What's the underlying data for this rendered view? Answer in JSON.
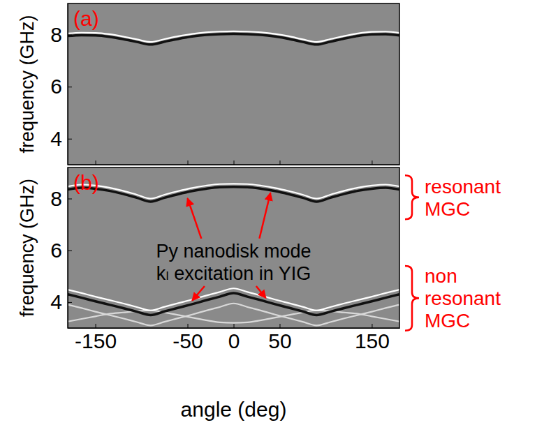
{
  "chart_data": [
    {
      "type": "line",
      "label": "(a)",
      "y_label": "frequency (GHz)",
      "tick_labels": "y",
      "xlim": [
        -180,
        180
      ],
      "xticks": [
        -150,
        -50,
        0,
        50,
        150
      ],
      "ylim": [
        3,
        9.2
      ],
      "yticks": [
        4,
        6,
        8
      ],
      "x": [
        -180,
        -165,
        -150,
        -135,
        -120,
        -105,
        -90,
        -75,
        -60,
        -45,
        -30,
        -15,
        0,
        15,
        30,
        45,
        60,
        75,
        90,
        105,
        120,
        135,
        150,
        165,
        180
      ],
      "series": [
        {
          "color": "#ffffff",
          "values": [
            8.05,
            8.08,
            8.07,
            8.02,
            7.93,
            7.82,
            7.72,
            7.83,
            7.94,
            8.03,
            8.09,
            8.12,
            8.13,
            8.12,
            8.09,
            8.03,
            7.94,
            7.82,
            7.72,
            7.83,
            7.95,
            8.05,
            8.11,
            8.12,
            8.07
          ]
        },
        {
          "color": "#111111",
          "values": [
            7.95,
            7.98,
            7.97,
            7.92,
            7.83,
            7.72,
            7.62,
            7.73,
            7.84,
            7.93,
            7.99,
            8.02,
            8.03,
            8.02,
            7.99,
            7.93,
            7.84,
            7.72,
            7.62,
            7.73,
            7.85,
            7.95,
            8.01,
            8.02,
            7.97
          ]
        }
      ]
    },
    {
      "type": "line",
      "label": "(b)",
      "x_label": "angle (deg)",
      "y_label": "frequency (GHz)",
      "xlim": [
        -180,
        180
      ],
      "xticks": [
        -150,
        -50,
        0,
        50,
        150
      ],
      "ylim": [
        3,
        9.2
      ],
      "yticks": [
        4,
        6,
        8
      ],
      "x": [
        -180,
        -165,
        -150,
        -135,
        -120,
        -105,
        -90,
        -75,
        -60,
        -45,
        -30,
        -15,
        0,
        15,
        30,
        45,
        60,
        75,
        90,
        105,
        120,
        135,
        150,
        165,
        180
      ],
      "series": [
        {
          "color": "#ffffff",
          "values": [
            8.47,
            8.54,
            8.5,
            8.42,
            8.3,
            8.15,
            8.0,
            8.15,
            8.29,
            8.41,
            8.5,
            8.56,
            8.57,
            8.56,
            8.5,
            8.41,
            8.29,
            8.15,
            8.0,
            8.15,
            8.3,
            8.42,
            8.5,
            8.54,
            8.47
          ]
        },
        {
          "color": "#111111",
          "values": [
            8.35,
            8.42,
            8.38,
            8.3,
            8.18,
            8.03,
            7.88,
            8.03,
            8.17,
            8.29,
            8.38,
            8.44,
            8.45,
            8.44,
            8.38,
            8.29,
            8.17,
            8.03,
            7.88,
            8.03,
            8.18,
            8.3,
            8.38,
            8.42,
            8.35
          ]
        },
        {
          "color": "#d9d9d9",
          "values": [
            3.25,
            3.35,
            3.45,
            3.55,
            3.6,
            3.65,
            3.68,
            3.6,
            3.5,
            3.4,
            3.3,
            3.22,
            3.2,
            3.22,
            3.3,
            3.4,
            3.5,
            3.6,
            3.68,
            3.65,
            3.6,
            3.55,
            3.45,
            3.35,
            3.25
          ]
        },
        {
          "color": "#d9d9d9",
          "values": [
            3.9,
            3.77,
            3.63,
            3.5,
            3.37,
            3.23,
            3.1,
            3.24,
            3.38,
            3.52,
            3.67,
            3.81,
            3.95,
            3.81,
            3.67,
            3.52,
            3.38,
            3.24,
            3.1,
            3.23,
            3.37,
            3.5,
            3.63,
            3.77,
            3.9
          ]
        },
        {
          "color": "#ffffff",
          "values": [
            4.48,
            4.35,
            4.21,
            4.08,
            3.95,
            3.81,
            3.68,
            3.82,
            3.96,
            4.1,
            4.25,
            4.39,
            4.53,
            4.39,
            4.25,
            4.1,
            3.96,
            3.82,
            3.68,
            3.81,
            3.95,
            4.08,
            4.21,
            4.35,
            4.48
          ]
        },
        {
          "color": "#111111",
          "values": [
            4.3,
            4.17,
            4.03,
            3.9,
            3.77,
            3.63,
            3.5,
            3.64,
            3.78,
            3.92,
            4.07,
            4.21,
            4.35,
            4.21,
            4.07,
            3.92,
            3.78,
            3.64,
            3.5,
            3.63,
            3.77,
            3.9,
            4.03,
            4.17,
            4.3
          ]
        }
      ],
      "annotations": [
        {
          "text": "Py nanodisk mode",
          "arrows": [
            {
              "x": -50,
              "y": 8.12
            },
            {
              "x": 40,
              "y": 8.33
            }
          ]
        },
        {
          "text": "kₗ excitation in YIG",
          "arrows": [
            {
              "x": -45,
              "y": 3.95
            },
            {
              "x": 35,
              "y": 4.05
            }
          ]
        }
      ],
      "groups": [
        {
          "label": "resonant MGC",
          "range": [
            7.2,
            8.9
          ]
        },
        {
          "label": "non resonant MGC",
          "range": [
            2.9,
            5.4
          ]
        }
      ]
    }
  ]
}
